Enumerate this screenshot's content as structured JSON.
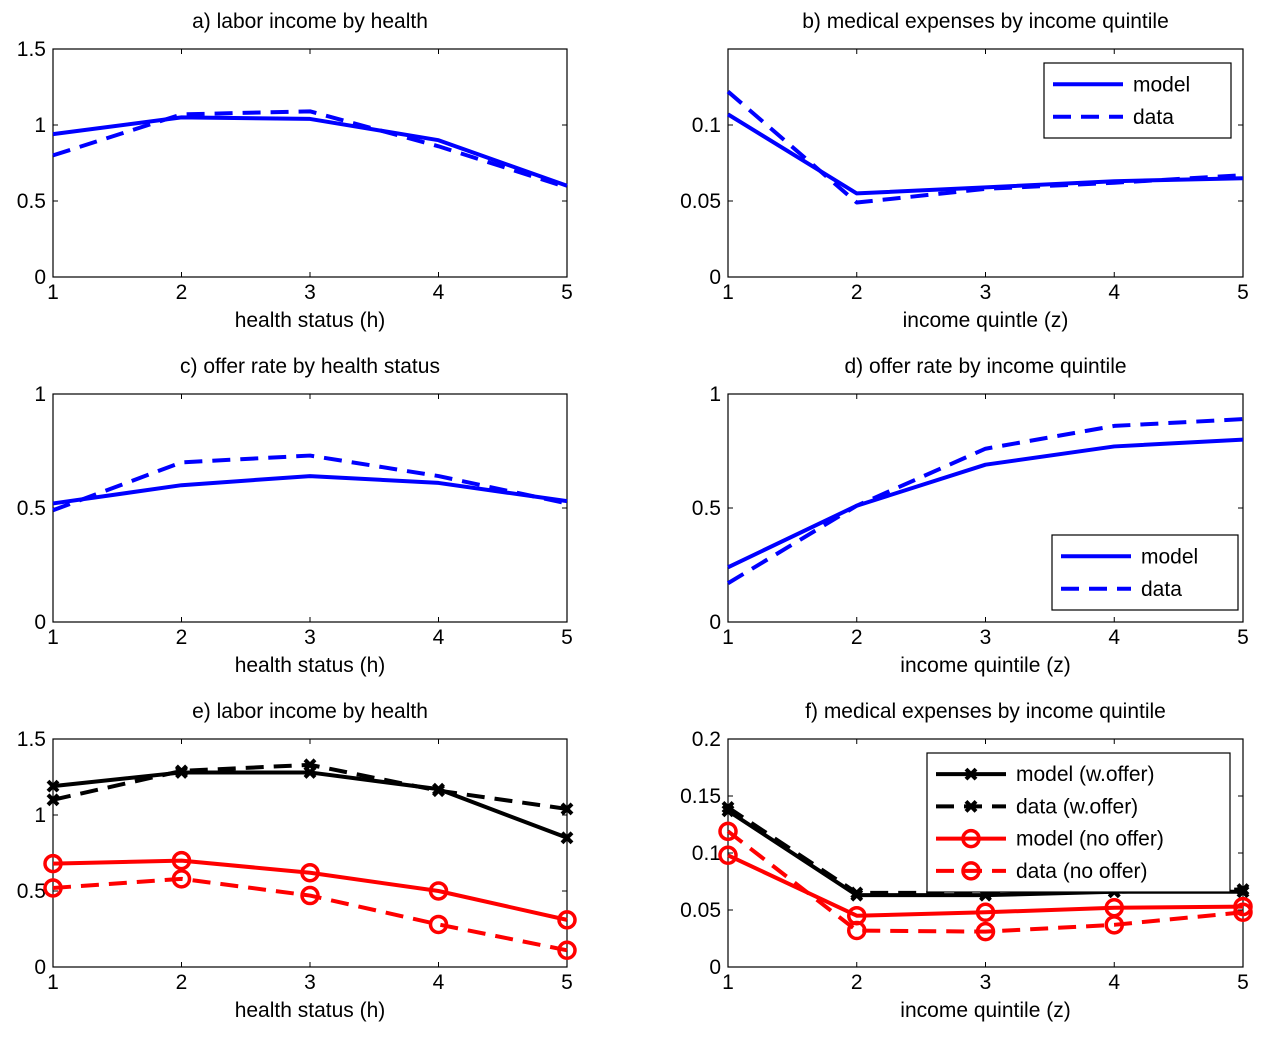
{
  "chart_data": [
    {
      "type": "line",
      "title": "a) labor income by health",
      "xlabel": "health status (h)",
      "ylabel": "",
      "x": [
        1,
        2,
        3,
        4,
        5
      ],
      "xticks": [
        "1",
        "2",
        "3",
        "4",
        "5"
      ],
      "yticks": [
        "0",
        "0.5",
        "1",
        "1.5"
      ],
      "xlim": [
        1,
        5
      ],
      "ylim": [
        0,
        1.5
      ],
      "series": [
        {
          "name": "model",
          "values": [
            0.94,
            1.05,
            1.04,
            0.9,
            0.6
          ],
          "color": "#0000ff",
          "dash": "solid",
          "marker": "none"
        },
        {
          "name": "data",
          "values": [
            0.8,
            1.07,
            1.09,
            0.86,
            0.59
          ],
          "color": "#0000ff",
          "dash": "dashed",
          "marker": "none"
        }
      ],
      "legend": null
    },
    {
      "type": "line",
      "title": "b) medical expenses by income quintile",
      "xlabel": "income quintle (z)",
      "ylabel": "",
      "x": [
        1,
        2,
        3,
        4,
        5
      ],
      "xticks": [
        "1",
        "2",
        "3",
        "4",
        "5"
      ],
      "yticks": [
        "0",
        "0.05",
        "0.1"
      ],
      "xlim": [
        1,
        5
      ],
      "ylim": [
        0,
        0.15
      ],
      "series": [
        {
          "name": "model",
          "values": [
            0.107,
            0.055,
            0.059,
            0.063,
            0.065
          ],
          "color": "#0000ff",
          "dash": "solid",
          "marker": "none"
        },
        {
          "name": "data",
          "values": [
            0.122,
            0.049,
            0.058,
            0.062,
            0.067
          ],
          "color": "#0000ff",
          "dash": "dashed",
          "marker": "none"
        }
      ],
      "legend": "top-right"
    },
    {
      "type": "line",
      "title": "c) offer rate by health status",
      "xlabel": "health status (h)",
      "ylabel": "",
      "x": [
        1,
        2,
        3,
        4,
        5
      ],
      "xticks": [
        "1",
        "2",
        "3",
        "4",
        "5"
      ],
      "yticks": [
        "0",
        "0.5",
        "1"
      ],
      "xlim": [
        1,
        5
      ],
      "ylim": [
        0,
        1
      ],
      "series": [
        {
          "name": "model",
          "values": [
            0.52,
            0.6,
            0.64,
            0.61,
            0.53
          ],
          "color": "#0000ff",
          "dash": "solid",
          "marker": "none"
        },
        {
          "name": "data",
          "values": [
            0.49,
            0.7,
            0.73,
            0.64,
            0.52
          ],
          "color": "#0000ff",
          "dash": "dashed",
          "marker": "none"
        }
      ],
      "legend": null
    },
    {
      "type": "line",
      "title": "d) offer rate by income quintile",
      "xlabel": "income quintile (z)",
      "ylabel": "",
      "x": [
        1,
        2,
        3,
        4,
        5
      ],
      "xticks": [
        "1",
        "2",
        "3",
        "4",
        "5"
      ],
      "yticks": [
        "0",
        "0.5",
        "1"
      ],
      "xlim": [
        1,
        5
      ],
      "ylim": [
        0,
        1
      ],
      "series": [
        {
          "name": "model",
          "values": [
            0.24,
            0.51,
            0.69,
            0.77,
            0.8
          ],
          "color": "#0000ff",
          "dash": "solid",
          "marker": "none"
        },
        {
          "name": "data",
          "values": [
            0.17,
            0.51,
            0.76,
            0.86,
            0.89
          ],
          "color": "#0000ff",
          "dash": "dashed",
          "marker": "none"
        }
      ],
      "legend": "bottom-right"
    },
    {
      "type": "line",
      "title": "e) labor income by health",
      "xlabel": "health status (h)",
      "ylabel": "",
      "x": [
        1,
        2,
        3,
        4,
        5
      ],
      "xticks": [
        "1",
        "2",
        "3",
        "4",
        "5"
      ],
      "yticks": [
        "0",
        "0.5",
        "1",
        "1.5"
      ],
      "xlim": [
        1,
        5
      ],
      "ylim": [
        0,
        1.5
      ],
      "series": [
        {
          "name": "model (w.offer)",
          "values": [
            1.19,
            1.28,
            1.28,
            1.17,
            0.85
          ],
          "color": "#000000",
          "dash": "solid",
          "marker": "x"
        },
        {
          "name": "data (w.offer)",
          "values": [
            1.1,
            1.29,
            1.33,
            1.16,
            1.04
          ],
          "color": "#000000",
          "dash": "dashed",
          "marker": "x"
        },
        {
          "name": "model (no offer)",
          "values": [
            0.68,
            0.7,
            0.62,
            0.5,
            0.31
          ],
          "color": "#ff0000",
          "dash": "solid",
          "marker": "o"
        },
        {
          "name": "data (no offer)",
          "values": [
            0.52,
            0.58,
            0.47,
            0.28,
            0.11
          ],
          "color": "#ff0000",
          "dash": "dashed",
          "marker": "o"
        }
      ],
      "legend": null
    },
    {
      "type": "line",
      "title": "f) medical expenses by income quintile",
      "xlabel": "income quintile (z)",
      "ylabel": "",
      "x": [
        1,
        2,
        3,
        4,
        5
      ],
      "xticks": [
        "1",
        "2",
        "3",
        "4",
        "5"
      ],
      "yticks": [
        "0",
        "0.05",
        "0.1",
        "0.15",
        "0.2"
      ],
      "xlim": [
        1,
        5
      ],
      "ylim": [
        0,
        0.2
      ],
      "series": [
        {
          "name": "model (w.offer)",
          "values": [
            0.137,
            0.063,
            0.063,
            0.066,
            0.066
          ],
          "color": "#000000",
          "dash": "solid",
          "marker": "x"
        },
        {
          "name": "data (w.offer)",
          "values": [
            0.14,
            0.065,
            0.065,
            0.066,
            0.068
          ],
          "color": "#000000",
          "dash": "dashed",
          "marker": "x"
        },
        {
          "name": "model (no offer)",
          "values": [
            0.098,
            0.045,
            0.048,
            0.052,
            0.053
          ],
          "color": "#ff0000",
          "dash": "solid",
          "marker": "o"
        },
        {
          "name": "data (no offer)",
          "values": [
            0.119,
            0.032,
            0.031,
            0.037,
            0.048
          ],
          "color": "#ff0000",
          "dash": "dashed",
          "marker": "o"
        }
      ],
      "legend": "top-right"
    }
  ]
}
